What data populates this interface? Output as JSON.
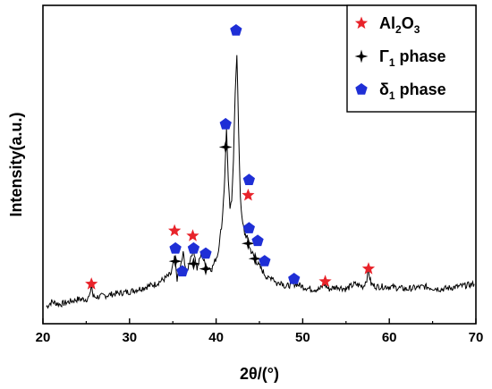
{
  "chart_data": {
    "type": "line",
    "xlabel": "2θ/(°)",
    "ylabel": "Intensity(a.u.)",
    "xlim": [
      20,
      70
    ],
    "x_ticks": [
      "20",
      "30",
      "40",
      "50",
      "60",
      "70"
    ],
    "y_ticks_labeled": false,
    "grid": false,
    "legend_position": "top-right",
    "series": [
      {
        "type": "line",
        "color": "#000000",
        "x": [
          20.4,
          21,
          22,
          23,
          24,
          25,
          25.4,
          25.6,
          25.8,
          26.5,
          28,
          30,
          32,
          33,
          34,
          34.8,
          35.2,
          35.5,
          35.8,
          36.2,
          36.6,
          37,
          37.4,
          37.8,
          38.3,
          38.8,
          39.5,
          40.2,
          40.7,
          41.0,
          41.2,
          41.4,
          41.6,
          41.8,
          42.0,
          42.2,
          42.4,
          42.6,
          42.8,
          43.0,
          43.3,
          43.6,
          43.9,
          44.2,
          44.5,
          44.8,
          45.2,
          45.6,
          46,
          46.5,
          47,
          47.5,
          48,
          48.8,
          49.3,
          50,
          51,
          52,
          52.5,
          53,
          54,
          55,
          56,
          57,
          57.4,
          57.6,
          57.9,
          58.5,
          60,
          62,
          64,
          66,
          68,
          69.8
        ],
        "y": [
          0.01,
          0.03,
          0.02,
          0.03,
          0.04,
          0.04,
          0.05,
          0.1,
          0.05,
          0.05,
          0.06,
          0.07,
          0.09,
          0.1,
          0.12,
          0.14,
          0.2,
          0.12,
          0.15,
          0.22,
          0.14,
          0.2,
          0.24,
          0.16,
          0.22,
          0.17,
          0.16,
          0.22,
          0.35,
          0.52,
          0.72,
          0.5,
          0.4,
          0.42,
          0.6,
          0.86,
          1.0,
          0.7,
          0.45,
          0.35,
          0.3,
          0.28,
          0.24,
          0.22,
          0.2,
          0.18,
          0.16,
          0.14,
          0.12,
          0.13,
          0.1,
          0.11,
          0.09,
          0.1,
          0.1,
          0.09,
          0.08,
          0.08,
          0.1,
          0.08,
          0.09,
          0.08,
          0.1,
          0.09,
          0.12,
          0.15,
          0.1,
          0.09,
          0.09,
          0.08,
          0.09,
          0.08,
          0.09,
          0.1
        ]
      }
    ],
    "markers": [
      {
        "name": "Al2O3",
        "shape": "star",
        "color": "#e8232a",
        "points": [
          [
            25.6,
            0.1
          ],
          [
            35.2,
            0.31
          ],
          [
            37.3,
            0.29
          ],
          [
            43.7,
            0.45
          ],
          [
            52.6,
            0.11
          ],
          [
            57.6,
            0.16
          ]
        ]
      },
      {
        "name": "Γ1 phase",
        "shape": "diamond-star",
        "color": "#000000",
        "points": [
          [
            35.3,
            0.19
          ],
          [
            37.4,
            0.18
          ],
          [
            38.8,
            0.16
          ],
          [
            41.1,
            0.64
          ],
          [
            43.7,
            0.26
          ],
          [
            44.5,
            0.2
          ]
        ]
      },
      {
        "name": "δ1 phase",
        "shape": "pentagon",
        "color": "#1f2fd6",
        "points": [
          [
            35.3,
            0.24
          ],
          [
            36.1,
            0.15
          ],
          [
            37.4,
            0.24
          ],
          [
            38.8,
            0.22
          ],
          [
            41.1,
            0.73
          ],
          [
            42.3,
            1.1
          ],
          [
            43.8,
            0.51
          ],
          [
            43.8,
            0.32
          ],
          [
            44.8,
            0.27
          ],
          [
            45.6,
            0.19
          ],
          [
            49.0,
            0.12
          ]
        ]
      }
    ],
    "legend": [
      {
        "label": "Al",
        "sub1": "2",
        "mid": "O",
        "sub2": "3",
        "suffix": "",
        "shape": "star",
        "color": "#e8232a"
      },
      {
        "label": "Γ",
        "sub1": "1",
        "mid": " phase",
        "sub2": "",
        "suffix": "",
        "shape": "diamond-star",
        "color": "#000000"
      },
      {
        "label": "δ",
        "sub1": "1",
        "mid": " phase",
        "sub2": "",
        "suffix": "",
        "shape": "pentagon",
        "color": "#1f2fd6"
      }
    ]
  }
}
